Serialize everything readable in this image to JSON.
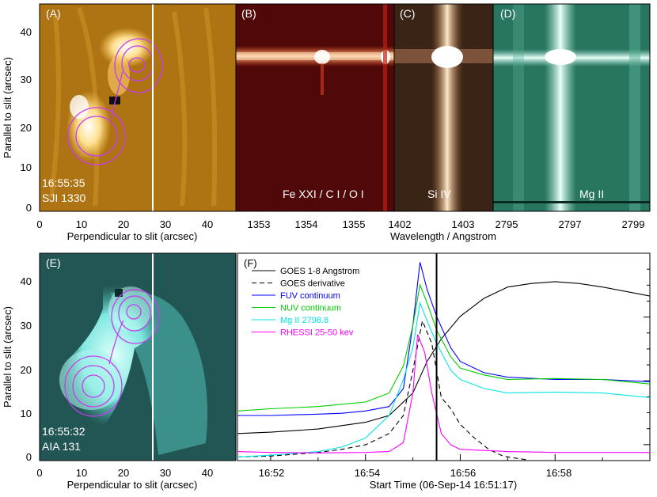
{
  "panels": {
    "A": {
      "label": "(A)",
      "time": "16:55:35",
      "instrument": "SJI 1330"
    },
    "B": {
      "label": "(B)",
      "line": "Fe XXI / C I / O I"
    },
    "C": {
      "label": "(C)",
      "line": "Si IV"
    },
    "D": {
      "label": "(D)",
      "line": "Mg II"
    },
    "E": {
      "label": "(E)",
      "time": "16:55:32",
      "instrument": "AIA 131"
    },
    "F": {
      "label": "(F)"
    }
  },
  "axes": {
    "top_ylabel": "Parallel to slit (arcsec)",
    "bottom_ylabel": "Parallel to slit (arcsec)",
    "top_xlabel": "Perpendicular to slit (arcsec)",
    "bottom_xlabel": "Perpendicular to slit (arcsec)",
    "wavelength_label": "Wavelength / Angstrom",
    "time_label": "Start Time (06-Sep-14 16:51:17)",
    "y_ticks": [
      "0",
      "10",
      "20",
      "30",
      "40"
    ],
    "x_ticks": [
      "0",
      "10",
      "20",
      "30",
      "40"
    ],
    "wl_B_ticks": [
      "1353",
      "1354",
      "1355"
    ],
    "wl_C_ticks": [
      "1402",
      "1403"
    ],
    "wl_D_ticks": [
      "2795",
      "2797",
      "2799"
    ],
    "time_ticks": [
      "16:52",
      "16:54",
      "16:56",
      "16:58"
    ]
  },
  "colors": {
    "goes": "#000000",
    "goes_deriv": "#000000",
    "fuv": "#0000ff",
    "nuv": "#00cc00",
    "mgii": "#00e5e5",
    "rhessi": "#ff00ff",
    "contour": "#c83cf0"
  },
  "chart_data": {
    "type": "line",
    "x_label": "Start Time (06-Sep-14 16:51:17)",
    "x_ticks": [
      "16:52",
      "16:54",
      "16:56",
      "16:58"
    ],
    "x_range_minutes": [
      16.75,
      60.0
    ],
    "slit_time_minute": 55.5,
    "series": [
      {
        "name": "GOES 1-8 Angstrom",
        "color": "#000000",
        "dash": false,
        "points": [
          [
            51.3,
            6
          ],
          [
            52,
            6.3
          ],
          [
            53,
            7
          ],
          [
            54,
            8.5
          ],
          [
            54.5,
            10
          ],
          [
            55,
            15
          ],
          [
            55.3,
            22
          ],
          [
            55.6,
            27
          ],
          [
            56,
            32
          ],
          [
            56.5,
            36
          ],
          [
            57,
            38.5
          ],
          [
            57.5,
            39.3
          ],
          [
            58,
            39.7
          ],
          [
            58.5,
            39.3
          ],
          [
            59,
            38.5
          ],
          [
            60,
            36.5
          ]
        ]
      },
      {
        "name": "GOES derivative",
        "color": "#000000",
        "dash": true,
        "points": [
          [
            51.3,
            0.8
          ],
          [
            52,
            1
          ],
          [
            53,
            1.8
          ],
          [
            53.5,
            2.5
          ],
          [
            54,
            3.5
          ],
          [
            54.5,
            6
          ],
          [
            54.8,
            10
          ],
          [
            55,
            20
          ],
          [
            55.2,
            31
          ],
          [
            55.4,
            26
          ],
          [
            55.6,
            14
          ],
          [
            55.8,
            11.5
          ],
          [
            56,
            8
          ],
          [
            56.3,
            5
          ],
          [
            56.6,
            2.5
          ],
          [
            56.9,
            1
          ],
          [
            57.2,
            0.5
          ],
          [
            57.4,
            0.2
          ]
        ]
      },
      {
        "name": "FUV continuum",
        "color": "#0000ff",
        "dash": false,
        "points": [
          [
            51.3,
            10
          ],
          [
            52,
            10
          ],
          [
            53,
            10.3
          ],
          [
            53.5,
            10.5
          ],
          [
            54,
            11
          ],
          [
            54.5,
            12
          ],
          [
            54.8,
            16
          ],
          [
            55.0,
            30
          ],
          [
            55.15,
            44
          ],
          [
            55.3,
            38
          ],
          [
            55.5,
            32
          ],
          [
            55.8,
            25
          ],
          [
            56,
            22
          ],
          [
            56.5,
            19.5
          ],
          [
            57,
            18.5
          ],
          [
            58,
            18
          ],
          [
            59,
            18
          ],
          [
            60,
            17.5
          ]
        ]
      },
      {
        "name": "NUV continuum",
        "color": "#00cc00",
        "dash": false,
        "points": [
          [
            51.3,
            11
          ],
          [
            52,
            11.5
          ],
          [
            53,
            12
          ],
          [
            54,
            13
          ],
          [
            54.5,
            15
          ],
          [
            54.8,
            21
          ],
          [
            55.0,
            30
          ],
          [
            55.15,
            39
          ],
          [
            55.3,
            35
          ],
          [
            55.5,
            29
          ],
          [
            55.8,
            23
          ],
          [
            56,
            20.5
          ],
          [
            56.5,
            19
          ],
          [
            57,
            18
          ],
          [
            58,
            18.2
          ],
          [
            59,
            18
          ],
          [
            60,
            17
          ]
        ]
      },
      {
        "name": "Mg II 2798.8",
        "color": "#00e5e5",
        "dash": false,
        "points": [
          [
            51.3,
            0.8
          ],
          [
            52,
            1.2
          ],
          [
            53,
            2
          ],
          [
            53.5,
            3
          ],
          [
            54,
            5
          ],
          [
            54.5,
            10
          ],
          [
            54.8,
            18
          ],
          [
            55.0,
            25
          ],
          [
            55.15,
            35
          ],
          [
            55.3,
            31
          ],
          [
            55.5,
            26
          ],
          [
            55.8,
            20
          ],
          [
            56,
            18
          ],
          [
            56.5,
            16
          ],
          [
            57,
            15
          ],
          [
            58,
            15.2
          ],
          [
            59,
            15
          ],
          [
            60,
            14
          ]
        ]
      },
      {
        "name": "RHESSI 25-50 kev",
        "color": "#ff00ff",
        "dash": false,
        "points": [
          [
            51.3,
            2
          ],
          [
            52,
            1.8
          ],
          [
            53,
            1.7
          ],
          [
            54,
            1.8
          ],
          [
            54.5,
            2
          ],
          [
            54.8,
            4
          ],
          [
            55.0,
            15
          ],
          [
            55.1,
            28
          ],
          [
            55.25,
            24
          ],
          [
            55.4,
            15
          ],
          [
            55.6,
            6
          ],
          [
            55.8,
            3.5
          ],
          [
            56,
            2.5
          ],
          [
            57,
            2
          ],
          [
            58,
            1.8
          ],
          [
            59,
            1.8
          ],
          [
            60,
            1.8
          ]
        ]
      }
    ]
  }
}
